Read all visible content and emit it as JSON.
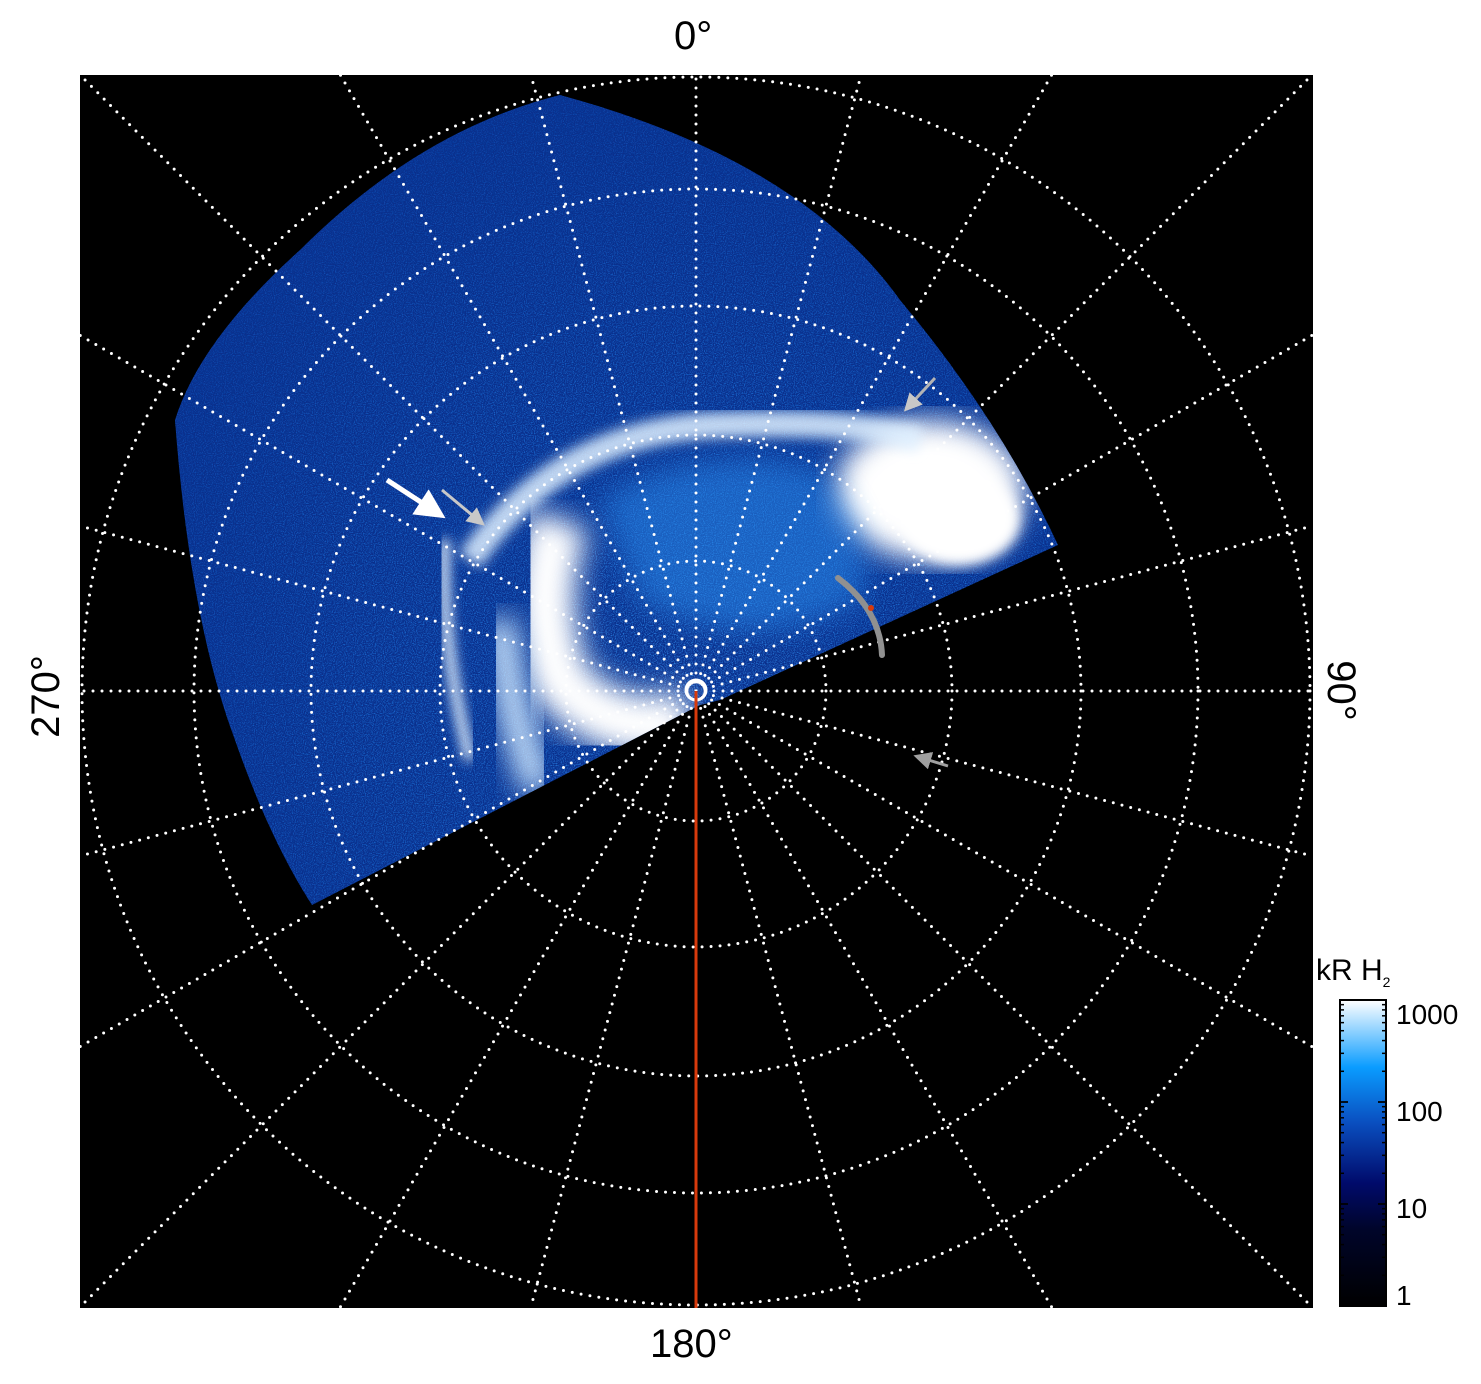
{
  "chart_data": {
    "type": "heatmap",
    "projection": "polar",
    "angular_tick_labels": [
      "0°",
      "90°",
      "180°",
      "270°"
    ],
    "angular_grid_step_deg": 15,
    "radial_rings": 5,
    "grid": true,
    "grid_style": "white dotted",
    "background": "#000000",
    "colorbar": {
      "label": "kR H",
      "label_subscript": "2",
      "scale": "log",
      "range": [
        1,
        1000
      ],
      "ticks": [
        "1",
        "10",
        "100",
        "1000"
      ],
      "colormap": [
        "#000000",
        "#000a5a",
        "#0a4fc0",
        "#0a9cff",
        "#ffffff"
      ],
      "placement": "right"
    },
    "annotations": [
      {
        "type": "arrow",
        "color": "#ffffff"
      },
      {
        "type": "arrow",
        "color": "#c8c8c8"
      },
      {
        "type": "arrow",
        "color": "#b4b4b4"
      },
      {
        "type": "arrow",
        "color": "#a0a0a0"
      },
      {
        "type": "line",
        "color": "#d83a0c",
        "angle_deg": 180
      },
      {
        "type": "arc",
        "color": "#909090"
      }
    ]
  }
}
